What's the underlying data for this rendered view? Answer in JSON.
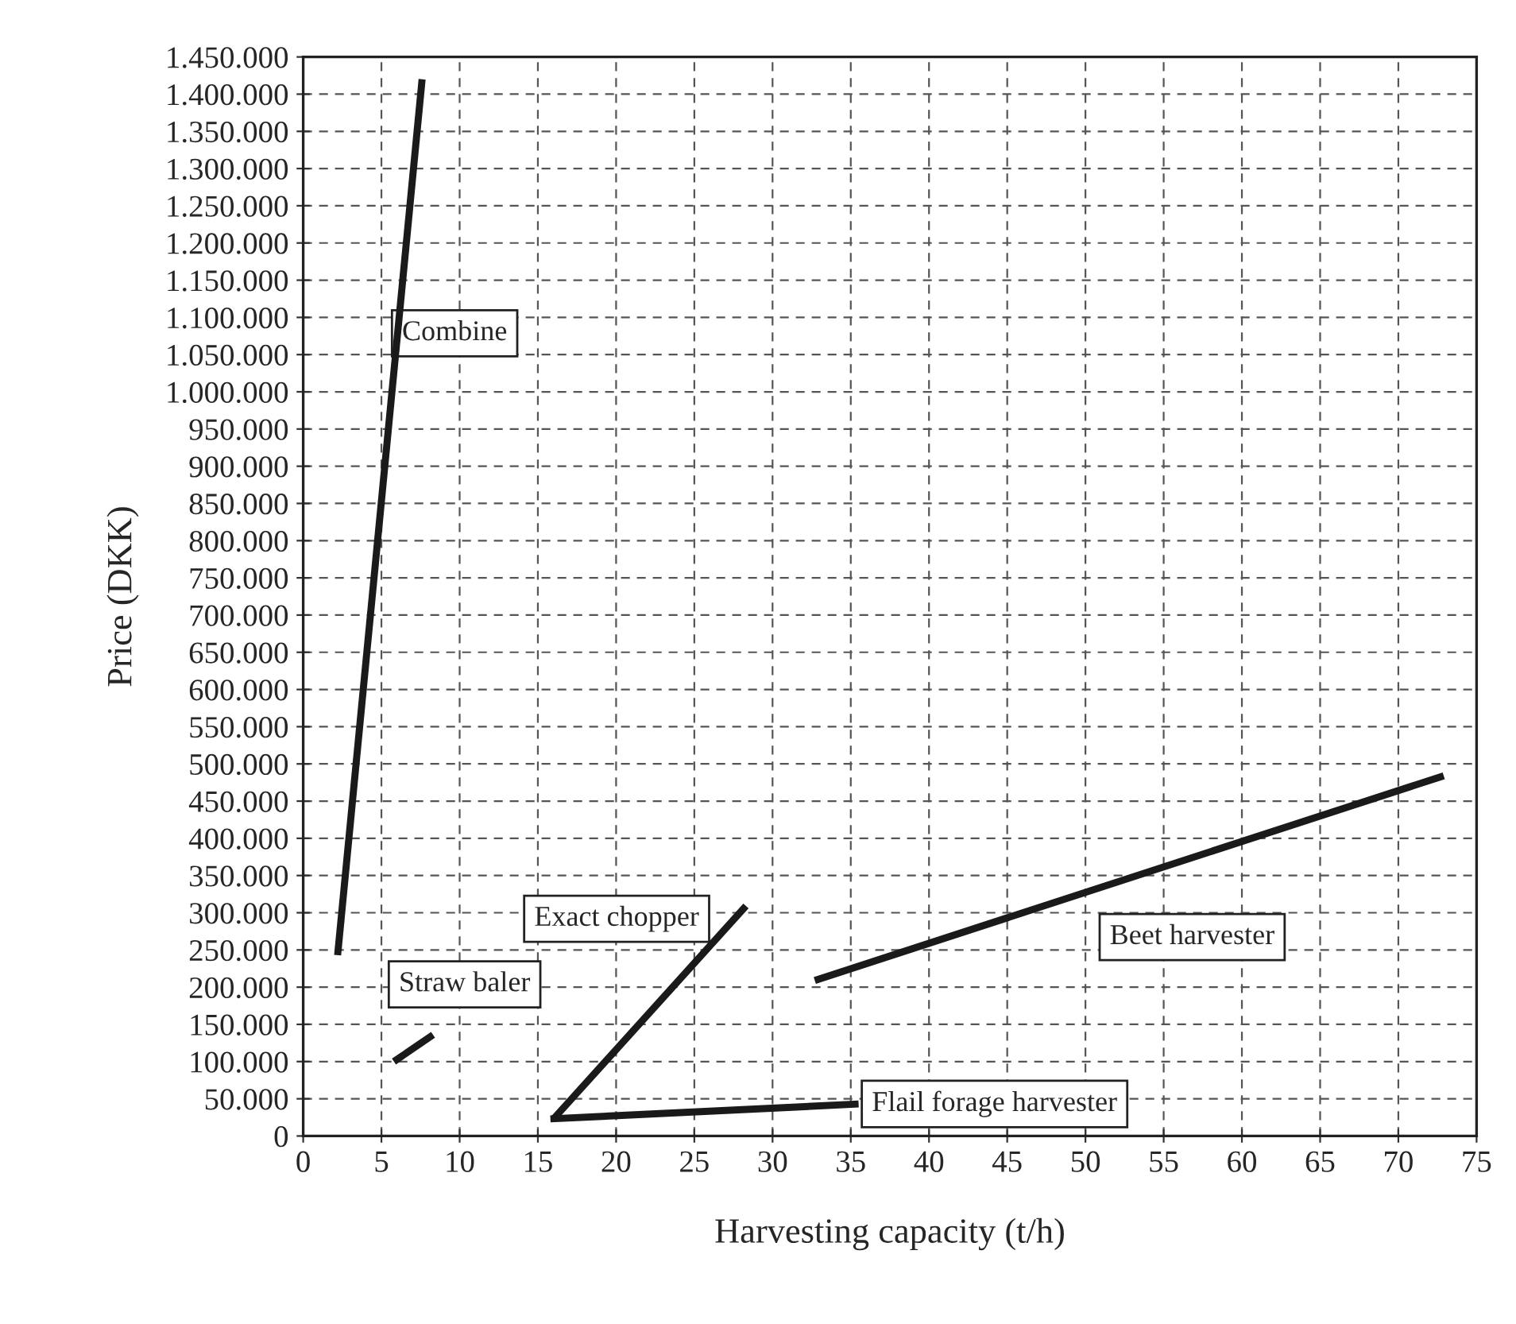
{
  "chart_data": {
    "type": "line",
    "xlabel": "Harvesting capacity (t/h)",
    "ylabel": "Price (DKK)",
    "series": [
      {
        "name": "Combine",
        "color": "#1a1a1a",
        "x": [
          2.2,
          7.6
        ],
        "values": [
          243000,
          1420000
        ]
      },
      {
        "name": "Straw baler",
        "color": "#1a1a1a",
        "x": [
          5.8,
          8.3
        ],
        "values": [
          100000,
          136000
        ]
      },
      {
        "name": "Exact chopper",
        "color": "#1a1a1a",
        "x": [
          16.0,
          28.3
        ],
        "values": [
          23000,
          309000
        ]
      },
      {
        "name": "Flail forage harvester",
        "color": "#1a1a1a",
        "x": [
          15.8,
          35.5
        ],
        "values": [
          23000,
          43000
        ]
      },
      {
        "name": "Beet harvester",
        "color": "#1a1a1a",
        "x": [
          32.7,
          72.9
        ],
        "values": [
          209000,
          484000
        ]
      }
    ],
    "xlim": [
      0,
      75
    ],
    "xticks": [
      0,
      5,
      10,
      15,
      20,
      25,
      30,
      35,
      40,
      45,
      50,
      55,
      60,
      65,
      70,
      75
    ],
    "ylim": [
      0,
      1450000
    ],
    "yticks": [
      0,
      {
        "value": 50000,
        "label": "50.000"
      },
      {
        "value": 100000,
        "label": "100.000"
      },
      {
        "value": 150000,
        "label": "150.000"
      },
      {
        "value": 200000,
        "label": "200.000"
      },
      {
        "value": 250000,
        "label": "250.000"
      },
      {
        "value": 300000,
        "label": "300.000"
      },
      {
        "value": 350000,
        "label": "350.000"
      },
      {
        "value": 400000,
        "label": "400.000"
      },
      {
        "value": 450000,
        "label": "450.000"
      },
      {
        "value": 500000,
        "label": "500.000"
      },
      {
        "value": 550000,
        "label": "550.000"
      },
      {
        "value": 600000,
        "label": "600.000"
      },
      {
        "value": 650000,
        "label": "650.000"
      },
      {
        "value": 700000,
        "label": "700.000"
      },
      {
        "value": 750000,
        "label": "750.000"
      },
      {
        "value": 800000,
        "label": "800.000"
      },
      {
        "value": 850000,
        "label": "850.000"
      },
      {
        "value": 900000,
        "label": "900.000"
      },
      {
        "value": 950000,
        "label": "950.000"
      },
      {
        "value": 1000000,
        "label": "1.000.000"
      },
      {
        "value": 1050000,
        "label": "1.050.000"
      },
      {
        "value": 1100000,
        "label": "1.100.000"
      },
      {
        "value": 1150000,
        "label": "1.150.000"
      },
      {
        "value": 1200000,
        "label": "1.200.000"
      },
      {
        "value": 1250000,
        "label": "1.250.000"
      },
      {
        "value": 1300000,
        "label": "1.300.000"
      },
      {
        "value": 1350000,
        "label": "1.350.000"
      },
      {
        "value": 1400000,
        "label": "1.400.000"
      },
      {
        "value": 1450000,
        "label": "1.450.000"
      }
    ],
    "grid": true,
    "line_style": "solid",
    "marker": "none"
  }
}
